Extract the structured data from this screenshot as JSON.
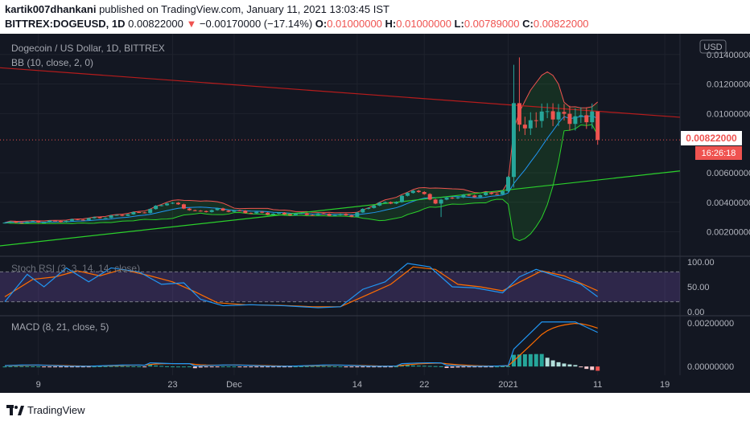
{
  "header": {
    "author": "kartik007dhankani",
    "published_text": " published on TradingView.com, January 11, 2021 13:03:45 IST",
    "symbol": "BITTREX:DOGEUSD, 1D",
    "last": " 0.00822000",
    "arrow": "▼",
    "change": " −0.00170000 (−17.14%)",
    "o_label": " O:",
    "o_val": "0.01000000",
    "h_label": " H:",
    "h_val": "0.01000000",
    "l_label": " L:",
    "l_val": "0.00789000",
    "c_label": " C:",
    "c_val": "0.00822000"
  },
  "chart_title": "Dogecoin / US Dollar, 1D, BITTREX",
  "bb_label": "BB (10, close, 2, 0)",
  "currency_badge": "USD",
  "price_badge": "0.00822000",
  "countdown_badge": "16:26:18",
  "colors": {
    "bg": "#131722",
    "up": "#26a69a",
    "down": "#ef5350",
    "bb_basis": "#2196f3",
    "trend_red": "#b71c1c",
    "trend_green": "#2bd02b",
    "rsi_k": "#2196f3",
    "rsi_d": "#ff6d00",
    "rsi_band": "#7e57c2"
  },
  "footer": {
    "brand": "TradingView"
  },
  "chart_data": [
    {
      "type": "candlestick",
      "title": "Dogecoin / US Dollar, 1D, BITTREX",
      "ylim": [
        0.0004,
        0.0154
      ],
      "y_ticks": [
        {
          "v": 0.014,
          "label": "0.01400000"
        },
        {
          "v": 0.012,
          "label": "0.01200000"
        },
        {
          "v": 0.01,
          "label": "0.01000000"
        },
        {
          "v": 0.006,
          "label": "0.00600000"
        },
        {
          "v": 0.004,
          "label": "0.00400000"
        },
        {
          "v": 0.002,
          "label": "0.00200000"
        }
      ],
      "x_ticks": [
        {
          "i": 6,
          "label": "9"
        },
        {
          "i": 30,
          "label": "23"
        },
        {
          "i": 41,
          "label": "Dec"
        },
        {
          "i": 63,
          "label": "14"
        },
        {
          "i": 75,
          "label": "22"
        },
        {
          "i": 90,
          "label": "2021"
        },
        {
          "i": 106,
          "label": "11"
        },
        {
          "i": 118,
          "label": "19"
        }
      ],
      "last_price": 0.00822
    },
    {
      "type": "line",
      "title": "Stoch RSI (3, 3, 14, 14, close)",
      "ylim": [
        0,
        100
      ],
      "y_ticks": [
        {
          "v": 100,
          "label": "100.00"
        },
        {
          "v": 50,
          "label": "50.00"
        },
        {
          "v": 0,
          "label": "0.00"
        }
      ],
      "bands": [
        20,
        80
      ]
    },
    {
      "type": "bar",
      "title": "MACD (8, 21, close, 5)",
      "ylim": [
        -0.0004,
        0.0023
      ],
      "y_ticks": [
        {
          "v": 0.002,
          "label": "0.00200000"
        },
        {
          "v": 0,
          "label": "0.00000000"
        }
      ]
    }
  ]
}
